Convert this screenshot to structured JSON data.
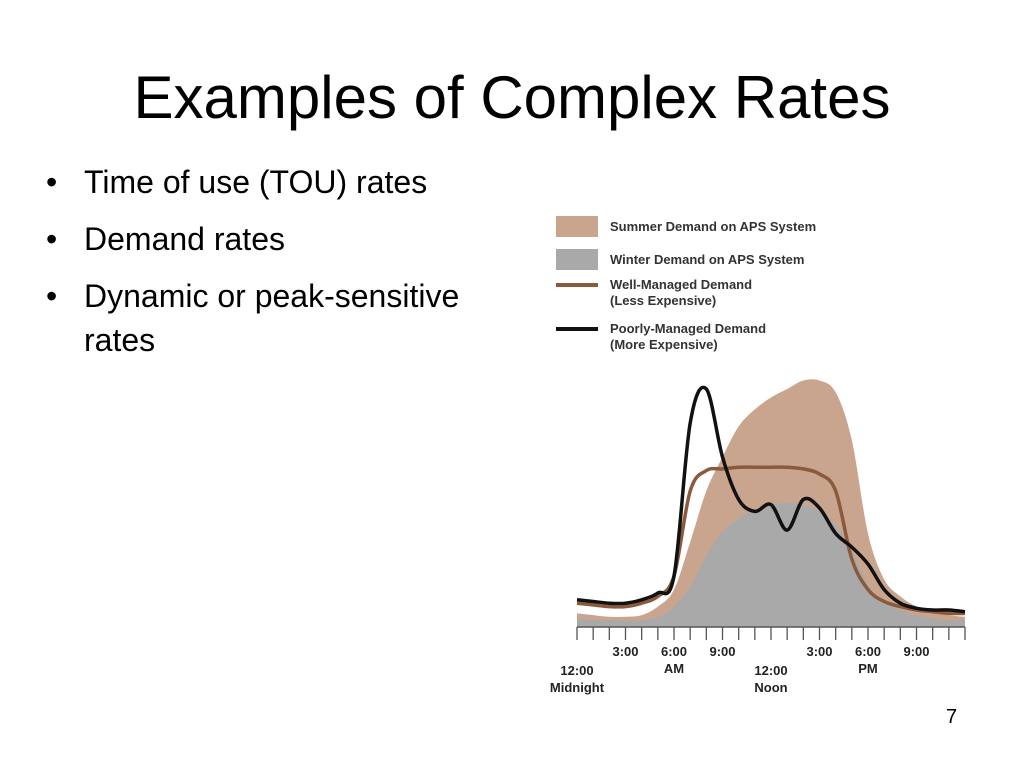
{
  "slide": {
    "title": "Examples of Complex Rates",
    "bullets": [
      "Time of use (TOU) rates",
      "Demand rates",
      "Dynamic or peak-sensitive rates"
    ],
    "page_number": "7"
  },
  "chart_data": {
    "type": "area",
    "title": "",
    "xlabel": "",
    "ylabel": "",
    "x_hours": [
      0,
      1,
      2,
      3,
      4,
      5,
      6,
      7,
      8,
      9,
      10,
      11,
      12,
      13,
      14,
      15,
      16,
      17,
      18,
      19,
      20,
      21,
      22,
      23,
      24
    ],
    "series": [
      {
        "name": "Summer Demand on APS System",
        "style": "area",
        "color": "#c9a58d",
        "values": [
          8,
          7,
          6,
          6,
          7,
          12,
          22,
          50,
          80,
          100,
          118,
          128,
          135,
          140,
          145,
          145,
          138,
          110,
          55,
          28,
          18,
          12,
          9,
          7,
          6
        ]
      },
      {
        "name": "Winter Demand on APS System",
        "style": "area",
        "color": "#a9a9a9",
        "values": [
          5,
          4,
          4,
          4,
          4,
          6,
          12,
          24,
          42,
          56,
          64,
          69,
          72,
          73,
          72,
          68,
          60,
          45,
          25,
          15,
          10,
          7,
          5,
          4,
          4
        ]
      },
      {
        "name": "Well-Managed Demand\n(Less Expensive)",
        "style": "line",
        "color": "#8b5a3c",
        "values": [
          14,
          13,
          12,
          12,
          14,
          18,
          30,
          80,
          92,
          93,
          94,
          94,
          94,
          94,
          93,
          90,
          80,
          40,
          22,
          15,
          12,
          10,
          9,
          8,
          8
        ]
      },
      {
        "name": "Poorly-Managed Demand\n(More Expensive)",
        "style": "line",
        "color": "#111111",
        "values": [
          16,
          15,
          14,
          14,
          16,
          20,
          30,
          120,
          140,
          100,
          75,
          68,
          72,
          57,
          75,
          70,
          55,
          47,
          37,
          22,
          14,
          11,
          10,
          10,
          9
        ]
      }
    ],
    "x_tick_labels": [
      {
        "hour": 0,
        "line1": "12:00",
        "line2": "Midnight"
      },
      {
        "hour": 3,
        "line1": "3:00",
        "line2": ""
      },
      {
        "hour": 6,
        "line1": "6:00",
        "line2": "AM"
      },
      {
        "hour": 9,
        "line1": "9:00",
        "line2": ""
      },
      {
        "hour": 12,
        "line1": "12:00",
        "line2": "Noon"
      },
      {
        "hour": 15,
        "line1": "3:00",
        "line2": ""
      },
      {
        "hour": 18,
        "line1": "6:00",
        "line2": "PM"
      },
      {
        "hour": 21,
        "line1": "9:00",
        "line2": ""
      }
    ],
    "legend_position": "top-left",
    "grid": false
  }
}
